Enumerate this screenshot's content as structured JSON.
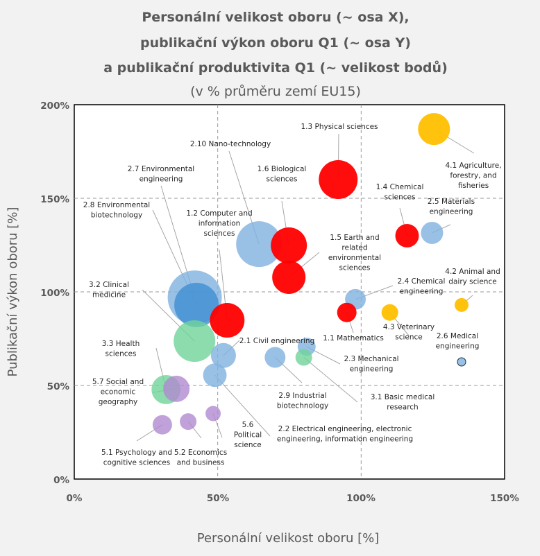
{
  "chart_data": {
    "type": "bubble",
    "title": [
      "Personální velikost oboru (~ osa X),",
      "publikační výkon oboru Q1 (~ osa Y)",
      "a publikační produktivita Q1 (~ velikost bodů)"
    ],
    "subtitle": "(v % průměru zemí EU15)",
    "xlabel": "Personální velikost oboru [%]",
    "ylabel": "Publikační výkon oboru [%]",
    "xlim": [
      0,
      150
    ],
    "ylim": [
      0,
      200
    ],
    "x_ticks": [
      "0%",
      "50%",
      "100%",
      "150%"
    ],
    "y_ticks": [
      "0%",
      "50%",
      "100%",
      "150%",
      "200%"
    ],
    "grid": "dashed at 50% and 100% (x), 50%, 100%, 150% (y)",
    "colors": {
      "natural": "#ff0000",
      "engineering": "#7fb2e0",
      "engineering_dark": "#3f8fd2",
      "medical": "#6fd39a",
      "agricultural": "#ffc000",
      "social": "#b08ad0"
    },
    "points": [
      {
        "name": [
          "4.1 Agriculture,",
          "forestry, and",
          "fisheries"
        ],
        "x": 125.4,
        "y": 187,
        "size": 132,
        "group": "agricultural"
      },
      {
        "name": [
          "1.3 Physical sciences"
        ],
        "x": 92,
        "y": 160,
        "size": 196,
        "group": "natural"
      },
      {
        "name": [
          "2.10 Nano-technology"
        ],
        "x": 64.4,
        "y": 125.5,
        "size": 272,
        "group": "engineering"
      },
      {
        "name": [
          "2.7 Environmental",
          "engineering"
        ],
        "x": 42,
        "y": 97,
        "size": 380,
        "group": "engineering"
      },
      {
        "name": [
          "2.8 Environmental",
          "biotechnology"
        ],
        "x": 42.6,
        "y": 93,
        "size": 256,
        "group": "engineering_dark"
      },
      {
        "name": [
          "1.6 Biological",
          "sciences"
        ],
        "x": 74.8,
        "y": 124.8,
        "size": 169,
        "group": "natural"
      },
      {
        "name": [
          "1.2 Computer and",
          "information",
          "sciences"
        ],
        "x": 53.3,
        "y": 84.8,
        "size": 156,
        "group": "natural"
      },
      {
        "name": [
          "1.4 Chemical",
          "sciences"
        ],
        "x": 116,
        "y": 130,
        "size": 72,
        "group": "natural"
      },
      {
        "name": [
          "2.5 Materials",
          "engineering"
        ],
        "x": 124.7,
        "y": 131.5,
        "size": 64,
        "group": "engineering"
      },
      {
        "name": [
          "1.5 Earth and",
          "related",
          "environmental",
          "sciences"
        ],
        "x": 74.8,
        "y": 107.8,
        "size": 144,
        "group": "natural"
      },
      {
        "name": [
          "3.2 Clinical",
          "medicine"
        ],
        "x": 41.9,
        "y": 73.7,
        "size": 225,
        "group": "medical"
      },
      {
        "name": [
          "2.4 Chemical",
          "engineering"
        ],
        "x": 98,
        "y": 96,
        "size": 56,
        "group": "engineering"
      },
      {
        "name": [
          "4.2 Animal and",
          "dairy science"
        ],
        "x": 135,
        "y": 93,
        "size": 25,
        "group": "agricultural"
      },
      {
        "name": [
          "4.3 Veterinary",
          "science"
        ],
        "x": 110,
        "y": 89,
        "size": 36,
        "group": "agricultural"
      },
      {
        "name": [
          "1.1 Mathematics"
        ],
        "x": 95,
        "y": 89,
        "size": 49,
        "group": "natural"
      },
      {
        "name": [
          "2.6 Medical",
          "engineering"
        ],
        "x": 135,
        "y": 62.6,
        "size": 9,
        "group": "engineering"
      },
      {
        "name": [
          "2.1 Civil engineering"
        ],
        "x": 52,
        "y": 66,
        "size": 81,
        "group": "engineering"
      },
      {
        "name": [
          "2.3 Mechanical",
          "engineering"
        ],
        "x": 81,
        "y": 70.7,
        "size": 42,
        "group": "engineering"
      },
      {
        "name": [
          "2.9 Industrial",
          "biotechnology"
        ],
        "x": 70,
        "y": 65,
        "size": 56,
        "group": "engineering"
      },
      {
        "name": [
          "3.1 Basic medical",
          "research"
        ],
        "x": 80,
        "y": 65,
        "size": 36,
        "group": "medical"
      },
      {
        "name": [
          "3.3 Health",
          "sciences"
        ],
        "x": 32,
        "y": 47.8,
        "size": 110,
        "group": "medical"
      },
      {
        "name": [
          "5.7 Social and",
          "economic",
          "geography"
        ],
        "x": 35.6,
        "y": 48.2,
        "size": 90,
        "group": "social"
      },
      {
        "name": [
          "5.6",
          "Political",
          "science"
        ],
        "x": 48.4,
        "y": 35,
        "size": 30,
        "group": "social"
      },
      {
        "name": [
          "2.2 Electrical engineering, electronic",
          "engineering, information engineering"
        ],
        "x": 49,
        "y": 55.5,
        "size": 72,
        "group": "engineering"
      },
      {
        "name": [
          "5.1 Psychology and",
          "cognitive sciences"
        ],
        "x": 30.7,
        "y": 29,
        "size": 49,
        "group": "social"
      },
      {
        "name": [
          "5.2 Economics",
          "and business"
        ],
        "x": 39.7,
        "y": 30.7,
        "size": 36,
        "group": "social"
      }
    ]
  }
}
